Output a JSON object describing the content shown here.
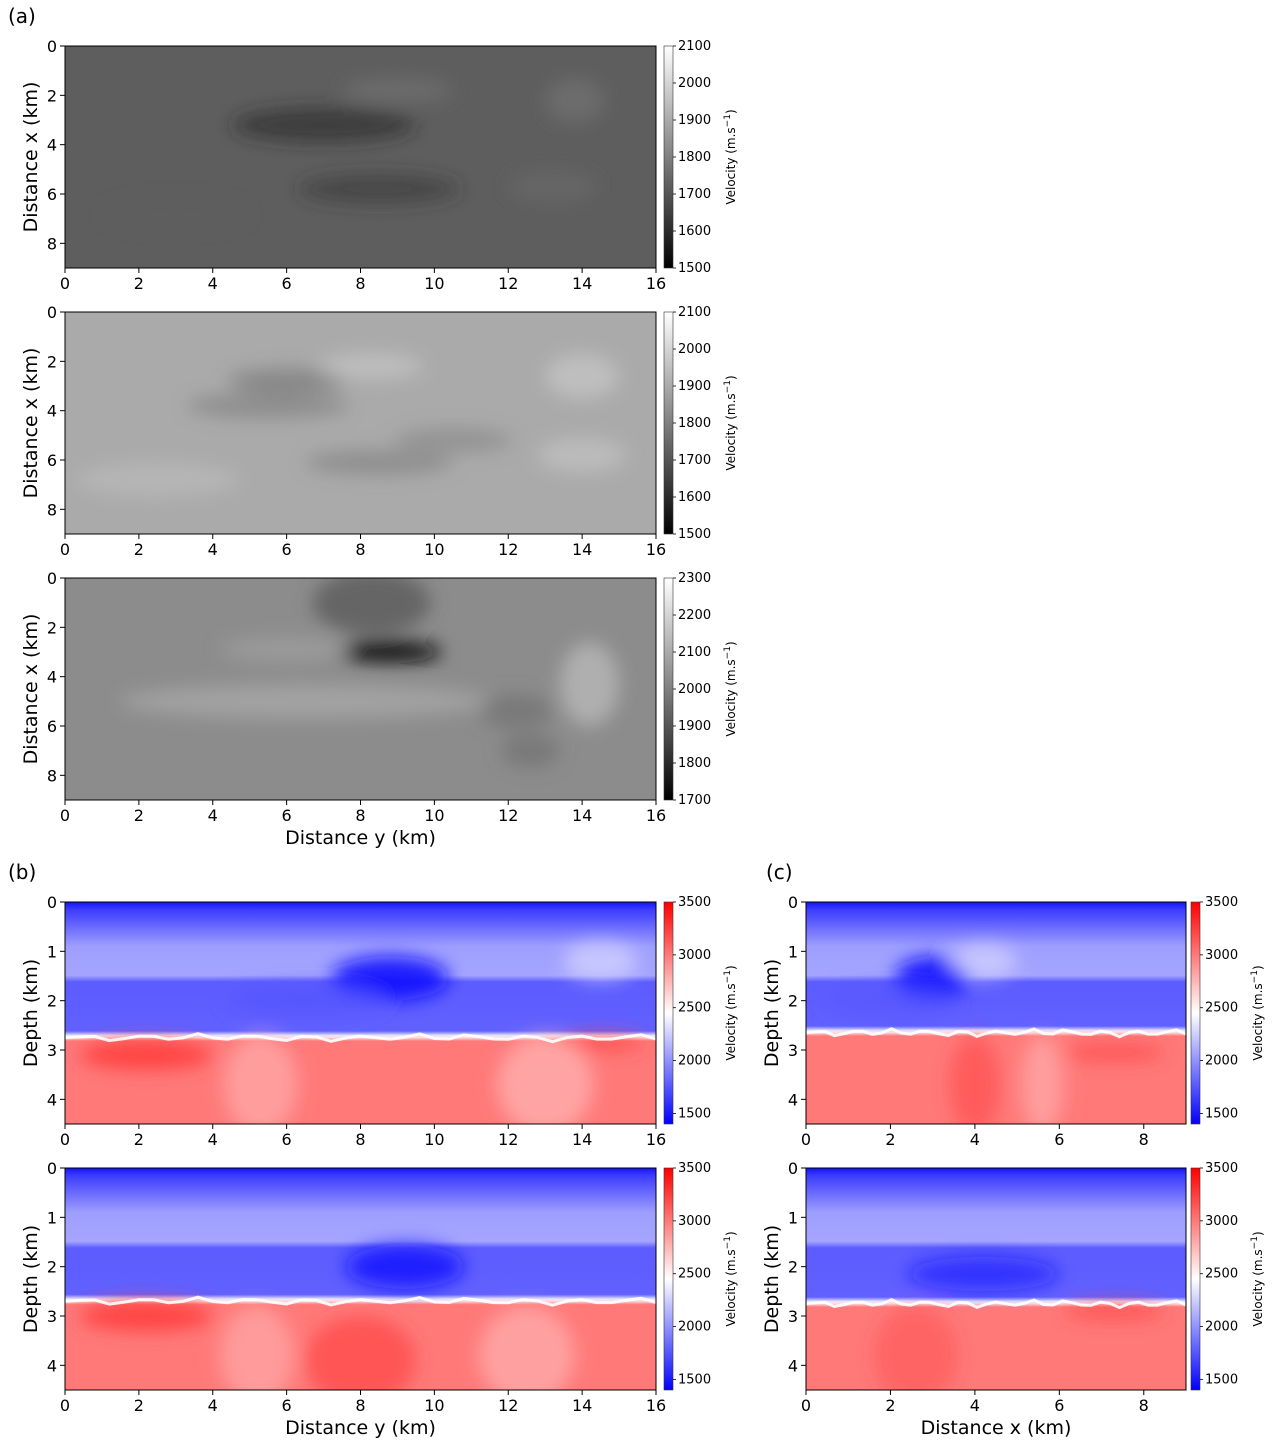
{
  "panel_labels": [
    "(a)",
    "(b)",
    "(c)"
  ],
  "colorbar_label": "Velocity (m.s",
  "colorbar_label_sup": "−1",
  "colorbar_label_close": ")",
  "chart_data": [
    {
      "id": "a1",
      "type": "heatmap",
      "panel": "(a)",
      "colormap": "gray",
      "xlabel": "",
      "ylabel": "Distance x (km)",
      "xlim": [
        0,
        16
      ],
      "ylim": [
        9,
        0
      ],
      "xticks": [
        0,
        2,
        4,
        6,
        8,
        10,
        12,
        14,
        16
      ],
      "yticks": [
        0,
        2,
        4,
        6,
        8
      ],
      "colorbar": {
        "label": "Velocity (m.s−1)",
        "min": 1500,
        "max": 2100,
        "ticks": [
          2100,
          2000,
          1900,
          1800,
          1700,
          1600,
          1500
        ]
      },
      "approx_background_value": 1720
    },
    {
      "id": "a2",
      "type": "heatmap",
      "panel": "(a)",
      "colormap": "gray",
      "xlabel": "",
      "ylabel": "Distance x (km)",
      "xlim": [
        0,
        16
      ],
      "ylim": [
        9,
        0
      ],
      "xticks": [
        0,
        2,
        4,
        6,
        8,
        10,
        12,
        14,
        16
      ],
      "yticks": [
        0,
        2,
        4,
        6,
        8
      ],
      "colorbar": {
        "label": "Velocity (m.s−1)",
        "min": 1500,
        "max": 2100,
        "ticks": [
          2100,
          2000,
          1900,
          1800,
          1700,
          1600,
          1500
        ]
      },
      "approx_background_value": 1900
    },
    {
      "id": "a3",
      "type": "heatmap",
      "panel": "(a)",
      "colormap": "gray",
      "xlabel": "Distance y (km)",
      "ylabel": "Distance x (km)",
      "xlim": [
        0,
        16
      ],
      "ylim": [
        9,
        0
      ],
      "xticks": [
        0,
        2,
        4,
        6,
        8,
        10,
        12,
        14,
        16
      ],
      "yticks": [
        0,
        2,
        4,
        6,
        8
      ],
      "colorbar": {
        "label": "Velocity (m.s−1)",
        "min": 1700,
        "max": 2300,
        "ticks": [
          2300,
          2200,
          2100,
          2000,
          1900,
          1800,
          1700
        ]
      },
      "approx_background_value": 2030
    },
    {
      "id": "b1",
      "type": "heatmap",
      "panel": "(b)",
      "colormap": "bwr",
      "xlabel": "",
      "ylabel": "Depth (km)",
      "xlim": [
        0,
        16
      ],
      "ylim": [
        4.5,
        0
      ],
      "xticks": [
        0,
        2,
        4,
        6,
        8,
        10,
        12,
        14,
        16
      ],
      "yticks": [
        0,
        1,
        2,
        3,
        4
      ],
      "colorbar": {
        "label": "Velocity (m.s−1)",
        "min": 1400,
        "max": 3500,
        "ticks": [
          3500,
          3000,
          2500,
          2000,
          1500
        ]
      },
      "interface_depth_km": 2.75
    },
    {
      "id": "b2",
      "type": "heatmap",
      "panel": "(b)",
      "colormap": "bwr",
      "xlabel": "Distance y (km)",
      "ylabel": "Depth (km)",
      "xlim": [
        0,
        16
      ],
      "ylim": [
        4.5,
        0
      ],
      "xticks": [
        0,
        2,
        4,
        6,
        8,
        10,
        12,
        14,
        16
      ],
      "yticks": [
        0,
        1,
        2,
        3,
        4
      ],
      "colorbar": {
        "label": "Velocity (m.s−1)",
        "min": 1400,
        "max": 3500,
        "ticks": [
          3500,
          3000,
          2500,
          2000,
          1500
        ]
      },
      "interface_depth_km": 2.7
    },
    {
      "id": "c1",
      "type": "heatmap",
      "panel": "(c)",
      "colormap": "bwr",
      "xlabel": "",
      "ylabel": "Depth (km)",
      "xlim": [
        0,
        9
      ],
      "ylim": [
        4.5,
        0
      ],
      "xticks": [
        0,
        2,
        4,
        6,
        8
      ],
      "yticks": [
        0,
        1,
        2,
        3,
        4
      ],
      "colorbar": {
        "label": "Velocity (m.s−1)",
        "min": 1400,
        "max": 3500,
        "ticks": [
          3500,
          3000,
          2500,
          2000,
          1500
        ]
      },
      "interface_depth_km": 2.65
    },
    {
      "id": "c2",
      "type": "heatmap",
      "panel": "(c)",
      "colormap": "bwr",
      "xlabel": "Distance x (km)",
      "ylabel": "Depth (km)",
      "xlim": [
        0,
        9
      ],
      "ylim": [
        4.5,
        0
      ],
      "xticks": [
        0,
        2,
        4,
        6,
        8
      ],
      "yticks": [
        0,
        1,
        2,
        3,
        4
      ],
      "colorbar": {
        "label": "Velocity (m.s−1)",
        "min": 1400,
        "max": 3500,
        "ticks": [
          3500,
          3000,
          2500,
          2000,
          1500
        ]
      },
      "interface_depth_km": 2.75
    }
  ]
}
